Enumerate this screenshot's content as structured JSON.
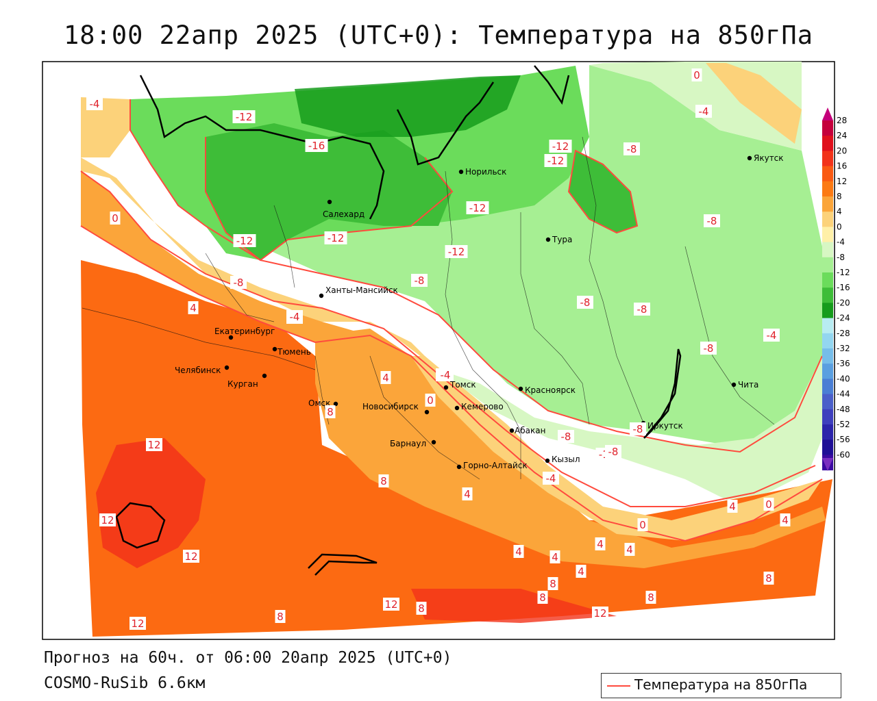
{
  "title": "18:00 22апр 2025 (UTC+0): Температура на 850гПа",
  "footer": {
    "forecast_line": "Прогноз на 60ч. от 06:00 20апр 2025 (UTC+0)",
    "model_line": "COSMO-RuSib 6.6км"
  },
  "legend": {
    "label": "Температура на 850гПа",
    "line_color": "#ff4a3d"
  },
  "colorbar": {
    "labels": [
      "28",
      "24",
      "20",
      "16",
      "12",
      "8",
      "4",
      "0",
      "-4",
      "-8",
      "-12",
      "-16",
      "-20",
      "-24",
      "-28",
      "-32",
      "-36",
      "-40",
      "-44",
      "-48",
      "-52",
      "-56",
      "-60"
    ],
    "colors": [
      "#c5003b",
      "#e0101c",
      "#f2331a",
      "#fa5a12",
      "#fc7a14",
      "#fba53a",
      "#fcd27a",
      "#fff0a8",
      "#d7f7c3",
      "#a6ef93",
      "#6bdc5b",
      "#3ebd38",
      "#169c1c",
      "#b8ecf2",
      "#93d6f0",
      "#76bde9",
      "#5a9fe0",
      "#4a7ed4",
      "#4a5fc9",
      "#3e3fbd",
      "#2b24aa",
      "#1f0f96",
      "#3a0aa0"
    ]
  },
  "cities": [
    {
      "name": "Якутск"
    },
    {
      "name": "Норильск"
    },
    {
      "name": "Салехард"
    },
    {
      "name": "Тура"
    },
    {
      "name": "Ханты-Мансийск"
    },
    {
      "name": "Екатеринбург"
    },
    {
      "name": "Тюмень"
    },
    {
      "name": "Челябинск"
    },
    {
      "name": "Курган"
    },
    {
      "name": "Омск"
    },
    {
      "name": "Томск"
    },
    {
      "name": "Новосибирск"
    },
    {
      "name": "Кемерово"
    },
    {
      "name": "Красноярск"
    },
    {
      "name": "Чита"
    },
    {
      "name": "Иркутск"
    },
    {
      "name": "Абакан"
    },
    {
      "name": "Барнаул"
    },
    {
      "name": "Кызыл"
    },
    {
      "name": "Горно-Алтайск"
    }
  ],
  "isotherm_labels": [
    "-4",
    "-12",
    "-16",
    "-12",
    "-8",
    "-12",
    "0",
    "-12",
    "-12",
    "-12",
    "-12",
    "-8",
    "-8",
    "-8",
    "-8",
    "-8",
    "-4",
    "-4",
    "-4",
    "-8",
    "-8",
    "-8",
    "-12",
    "-8",
    "-4",
    "-4",
    "0",
    "4",
    "0",
    "4",
    "4",
    "8",
    "12",
    "12",
    "12",
    "12",
    "8",
    "8",
    "4",
    "8",
    "4",
    "4",
    "4",
    "4",
    "8",
    "8",
    "12",
    "8",
    "0",
    "4",
    "-4",
    "-4",
    "0",
    "4",
    "8",
    "12",
    "12"
  ]
}
